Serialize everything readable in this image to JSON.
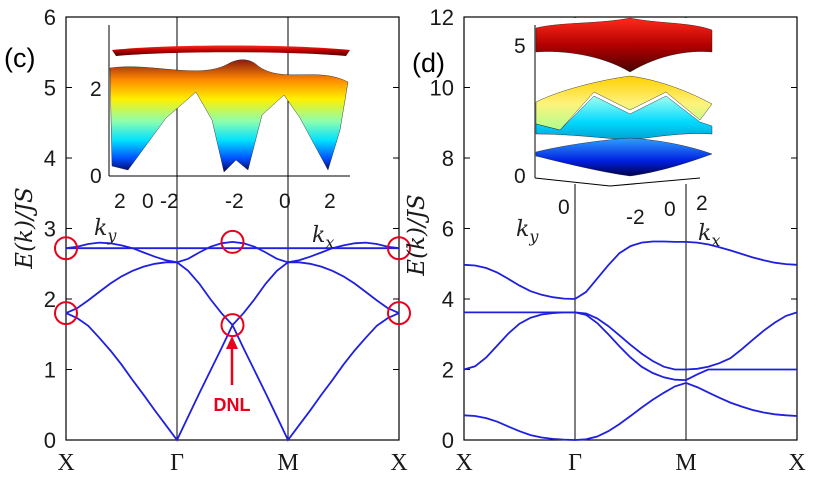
{
  "chart_data": [
    {
      "type": "line",
      "panel": "(c)",
      "ylabel": "E(k)/JS",
      "ylim": [
        0,
        6
      ],
      "yticks": [
        "0",
        "1",
        "2",
        "3",
        "4",
        "5",
        "6"
      ],
      "xticks": [
        "X",
        "Γ",
        "M",
        "X"
      ],
      "path": "X-Γ-M-X",
      "series": [
        {
          "x": [
            0,
            0.1,
            0.2,
            0.3,
            0.4,
            0.5,
            0.6,
            0.7,
            0.8,
            0.9,
            1,
            1.1,
            1.2,
            1.3,
            1.4,
            1.5,
            1.6,
            1.7,
            1.8,
            1.9,
            2,
            2.1,
            2.2,
            2.3,
            2.4,
            2.5,
            2.6,
            2.7,
            2.8,
            2.9,
            3
          ],
          "values": [
            2.72,
            2.72,
            2.72,
            2.72,
            2.72,
            2.72,
            2.72,
            2.72,
            2.72,
            2.72,
            2.72,
            2.72,
            2.72,
            2.72,
            2.72,
            2.72,
            2.72,
            2.72,
            2.72,
            2.72,
            2.72,
            2.72,
            2.72,
            2.72,
            2.72,
            2.72,
            2.72,
            2.72,
            2.72,
            2.72,
            2.72
          ]
        },
        {
          "x": [
            0,
            0.1,
            0.2,
            0.3,
            0.4,
            0.5,
            0.6,
            0.7,
            0.8,
            0.9,
            1,
            1.1,
            1.2,
            1.3,
            1.4,
            1.5,
            1.6,
            1.7,
            1.8,
            1.9,
            2,
            2.1,
            2.2,
            2.3,
            2.4,
            2.5,
            2.6,
            2.7,
            2.8,
            2.9,
            3
          ],
          "values": [
            2.72,
            2.74,
            2.78,
            2.8,
            2.79,
            2.76,
            2.72,
            2.66,
            2.6,
            2.55,
            2.52,
            2.57,
            2.66,
            2.74,
            2.79,
            2.81,
            2.79,
            2.74,
            2.66,
            2.57,
            2.52,
            2.55,
            2.6,
            2.66,
            2.72,
            2.76,
            2.79,
            2.8,
            2.78,
            2.74,
            2.72
          ]
        },
        {
          "x": [
            0,
            0.1,
            0.2,
            0.3,
            0.4,
            0.5,
            0.6,
            0.7,
            0.8,
            0.9,
            1,
            1.1,
            1.2,
            1.3,
            1.4,
            1.5,
            1.6,
            1.7,
            1.8,
            1.9,
            2,
            2.1,
            2.2,
            2.3,
            2.4,
            2.5,
            2.6,
            2.7,
            2.8,
            2.9,
            3
          ],
          "values": [
            1.8,
            1.87,
            1.98,
            2.1,
            2.22,
            2.32,
            2.4,
            2.46,
            2.5,
            2.52,
            2.52,
            2.4,
            2.22,
            2.0,
            1.8,
            1.63,
            1.8,
            2.0,
            2.22,
            2.4,
            2.52,
            2.52,
            2.5,
            2.46,
            2.4,
            2.32,
            2.22,
            2.1,
            1.98,
            1.87,
            1.8
          ]
        },
        {
          "x": [
            0,
            0.1,
            0.2,
            0.3,
            0.4,
            0.5,
            0.6,
            0.7,
            0.8,
            0.9,
            1,
            1.1,
            1.2,
            1.3,
            1.4,
            1.5,
            1.6,
            1.7,
            1.8,
            1.9,
            2,
            2.1,
            2.2,
            2.3,
            2.4,
            2.5,
            2.6,
            2.7,
            2.8,
            2.9,
            3
          ],
          "values": [
            1.8,
            1.73,
            1.62,
            1.45,
            1.27,
            1.07,
            0.85,
            0.64,
            0.42,
            0.21,
            0,
            0.33,
            0.66,
            0.98,
            1.3,
            1.63,
            1.3,
            0.98,
            0.66,
            0.33,
            0,
            0.21,
            0.42,
            0.64,
            0.85,
            1.07,
            1.27,
            1.45,
            1.62,
            1.73,
            1.8
          ]
        }
      ],
      "markers": [
        {
          "label": "X",
          "x": 0,
          "y": 2.72
        },
        {
          "label": "X",
          "x": 0,
          "y": 1.8
        },
        {
          "label": "mid",
          "x": 1.5,
          "y": 2.81
        },
        {
          "label": "DNL",
          "x": 1.5,
          "y": 1.63
        },
        {
          "label": "X",
          "x": 3,
          "y": 2.72
        },
        {
          "label": "X",
          "x": 3,
          "y": 1.8
        }
      ],
      "annotation": "DNL",
      "inset": {
        "zticks": [
          "0",
          "2"
        ],
        "xticks_left": [
          "2",
          "0",
          "-2"
        ],
        "xticks_right": [
          "-2",
          "0",
          "2"
        ],
        "ky_label": "k_y",
        "kx_label": "k_x"
      },
      "line_color": "#1f1fe0",
      "marker_color": "#e8001c"
    },
    {
      "type": "line",
      "panel": "(d)",
      "ylim": [
        0,
        12
      ],
      "yticks": [
        "0",
        "2",
        "4",
        "6",
        "8",
        "10",
        "12"
      ],
      "xticks": [
        "X",
        "Γ",
        "M",
        "X"
      ],
      "path": "X-Γ-M-X",
      "series": [
        {
          "x": [
            0,
            0.1,
            0.2,
            0.3,
            0.4,
            0.5,
            0.6,
            0.7,
            0.8,
            0.9,
            1,
            1.1,
            1.2,
            1.3,
            1.4,
            1.5,
            1.6,
            1.7,
            1.8,
            1.9,
            2,
            2.1,
            2.2,
            2.3,
            2.4,
            2.5,
            2.6,
            2.7,
            2.8,
            2.9,
            3
          ],
          "values": [
            4.97,
            4.95,
            4.88,
            4.75,
            4.57,
            4.38,
            4.22,
            4.12,
            4.05,
            4.01,
            4.0,
            4.2,
            4.58,
            4.96,
            5.3,
            5.5,
            5.6,
            5.63,
            5.63,
            5.62,
            5.62,
            5.6,
            5.55,
            5.47,
            5.38,
            5.28,
            5.18,
            5.1,
            5.03,
            4.99,
            4.97
          ]
        },
        {
          "x": [
            0,
            0.1,
            0.2,
            0.3,
            0.4,
            0.5,
            0.6,
            0.7,
            0.8,
            0.9,
            1,
            1.1,
            1.2,
            1.3,
            1.4,
            1.5,
            1.6,
            1.7,
            1.8,
            1.9,
            2,
            2.1,
            2.2,
            2.3,
            2.4,
            2.5,
            2.6,
            2.7,
            2.8,
            2.9,
            3
          ],
          "values": [
            3.62,
            3.62,
            3.62,
            3.62,
            3.62,
            3.62,
            3.62,
            3.62,
            3.62,
            3.62,
            3.62,
            3.59,
            3.45,
            3.23,
            2.97,
            2.7,
            2.45,
            2.24,
            2.08,
            2.0,
            2.0,
            2.02,
            2.08,
            2.18,
            2.32,
            2.57,
            2.84,
            3.1,
            3.33,
            3.52,
            3.62
          ]
        },
        {
          "x": [
            0,
            0.1,
            0.2,
            0.3,
            0.4,
            0.5,
            0.6,
            0.7,
            0.8,
            0.9,
            1,
            1.1,
            1.2,
            1.3,
            1.4,
            1.5,
            1.6,
            1.7,
            1.8,
            1.9,
            2,
            2.1,
            2.2,
            2.3,
            2.4,
            2.5,
            2.6,
            2.7,
            2.8,
            2.9,
            3
          ],
          "values": [
            2.0,
            2.09,
            2.34,
            2.68,
            3.02,
            3.3,
            3.47,
            3.56,
            3.6,
            3.62,
            3.62,
            3.55,
            3.32,
            3.0,
            2.66,
            2.34,
            2.08,
            1.9,
            1.78,
            1.71,
            1.7,
            1.86,
            2.0,
            2.0,
            2.0,
            2.0,
            2.0,
            2.0,
            2.0,
            2.0,
            2.0
          ]
        },
        {
          "x": [
            0,
            0.1,
            0.2,
            0.3,
            0.4,
            0.5,
            0.6,
            0.7,
            0.8,
            0.9,
            1,
            1.1,
            1.2,
            1.3,
            1.4,
            1.5,
            1.6,
            1.7,
            1.8,
            1.9,
            2,
            2.1,
            2.2,
            2.3,
            2.4,
            2.5,
            2.6,
            2.7,
            2.8,
            2.9,
            3
          ],
          "values": [
            0.7,
            0.68,
            0.62,
            0.52,
            0.38,
            0.25,
            0.14,
            0.07,
            0.03,
            0.01,
            0,
            0.02,
            0.1,
            0.25,
            0.45,
            0.68,
            0.92,
            1.14,
            1.34,
            1.52,
            1.62,
            1.5,
            1.35,
            1.2,
            1.06,
            0.95,
            0.85,
            0.78,
            0.73,
            0.7,
            0.68
          ]
        }
      ],
      "inset": {
        "zticks": [
          "0",
          "5"
        ],
        "xticks_left": [
          "0"
        ],
        "xticks_right": [
          "-2",
          "0",
          "2"
        ],
        "ky_label": "k_y",
        "kx_label": "k_x"
      },
      "line_color": "#1f1fe0"
    }
  ]
}
